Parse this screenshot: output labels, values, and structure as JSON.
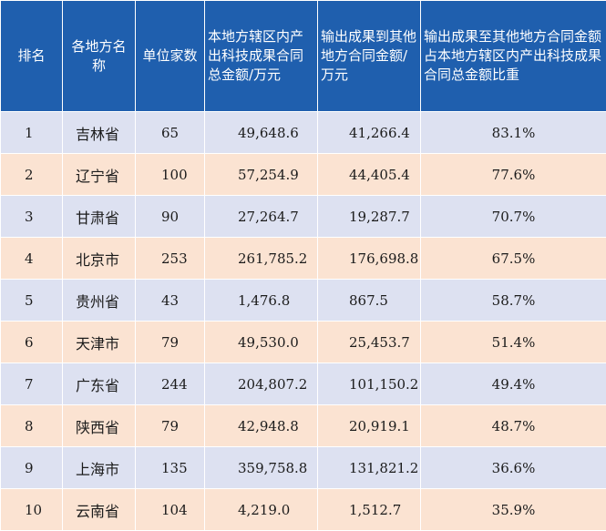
{
  "table": {
    "headers": [
      "排名",
      "各地方名称",
      "单位家数",
      "本地方辖区内产出科技成果合同总金额/万元",
      "输出成果到其他地方合同金额/万元",
      "输出成果至其他地方合同金额占本地方辖区内产出科技成果合同总金额比重"
    ],
    "rows": [
      {
        "rank": "1",
        "region": "吉林省",
        "count": "65",
        "total": "49,648.6",
        "output": "41,266.4",
        "ratio": "83.1%"
      },
      {
        "rank": "2",
        "region": "辽宁省",
        "count": "100",
        "total": "57,254.9",
        "output": "44,405.4",
        "ratio": "77.6%"
      },
      {
        "rank": "3",
        "region": "甘肃省",
        "count": "90",
        "total": "27,264.7",
        "output": "19,287.7",
        "ratio": "70.7%"
      },
      {
        "rank": "4",
        "region": "北京市",
        "count": "253",
        "total": "261,785.2",
        "output": "176,698.8",
        "ratio": "67.5%"
      },
      {
        "rank": "5",
        "region": "贵州省",
        "count": "43",
        "total": "1,476.8",
        "output": "867.5",
        "ratio": "58.7%"
      },
      {
        "rank": "6",
        "region": "天津市",
        "count": "79",
        "total": "49,530.0",
        "output": "25,453.7",
        "ratio": "51.4%"
      },
      {
        "rank": "7",
        "region": "广东省",
        "count": "244",
        "total": "204,807.2",
        "output": "101,150.2",
        "ratio": "49.4%"
      },
      {
        "rank": "8",
        "region": "陕西省",
        "count": "79",
        "total": "42,948.8",
        "output": "20,919.1",
        "ratio": "48.7%"
      },
      {
        "rank": "9",
        "region": "上海市",
        "count": "135",
        "total": "359,758.8",
        "output": "131,821.2",
        "ratio": "36.6%"
      },
      {
        "rank": "10",
        "region": "云南省",
        "count": "104",
        "total": "4,219.0",
        "output": "1,512.7",
        "ratio": "35.9%"
      }
    ],
    "colors": {
      "header_bg": "#1f5fae",
      "row_odd_bg": "#dde1f1",
      "row_even_bg": "#fbe3d2"
    }
  }
}
